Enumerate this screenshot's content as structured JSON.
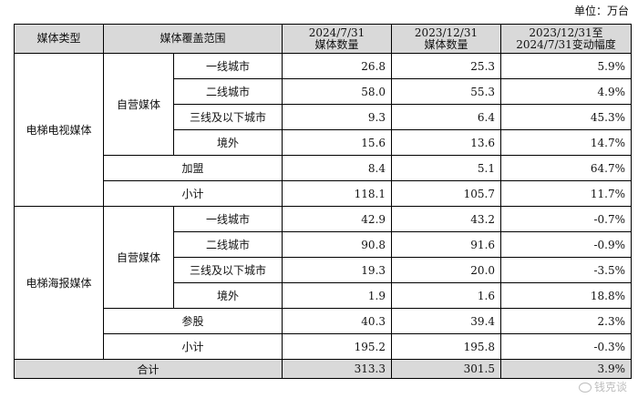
{
  "unit_label": "单位：万台",
  "headers": {
    "media_type": "媒体类型",
    "coverage": "媒体覆盖范围",
    "col_2024_date": "2024/7/31",
    "col_2024_sub": "媒体数量",
    "col_2023_date": "2023/12/31",
    "col_2023_sub": "媒体数量",
    "col_change_date": "2023/12/31至",
    "col_change_sub": "2024/7/31变动幅度"
  },
  "sections": [
    {
      "type": "电梯电视媒体",
      "self_label": "自营媒体",
      "self_rows": [
        {
          "label": "一线城市",
          "v2024": "26.8",
          "v2023": "25.3",
          "change": "5.9%"
        },
        {
          "label": "二线城市",
          "v2024": "58.0",
          "v2023": "55.3",
          "change": "4.9%"
        },
        {
          "label": "三线及以下城市",
          "v2024": "9.3",
          "v2023": "6.4",
          "change": "45.3%"
        },
        {
          "label": "境外",
          "v2024": "15.6",
          "v2023": "13.6",
          "change": "14.7%"
        }
      ],
      "extra_row": {
        "label": "加盟",
        "v2024": "8.4",
        "v2023": "5.1",
        "change": "64.7%"
      },
      "subtotal": {
        "label": "小计",
        "v2024": "118.1",
        "v2023": "105.7",
        "change": "11.7%"
      }
    },
    {
      "type": "电梯海报媒体",
      "self_label": "自营媒体",
      "self_rows": [
        {
          "label": "一线城市",
          "v2024": "42.9",
          "v2023": "43.2",
          "change": "-0.7%"
        },
        {
          "label": "二线城市",
          "v2024": "90.8",
          "v2023": "91.6",
          "change": "-0.9%"
        },
        {
          "label": "三线及以下城市",
          "v2024": "19.3",
          "v2023": "20.0",
          "change": "-3.5%"
        },
        {
          "label": "境外",
          "v2024": "1.9",
          "v2023": "1.6",
          "change": "18.8%"
        }
      ],
      "extra_row": {
        "label": "参股",
        "v2024": "40.3",
        "v2023": "39.4",
        "change": "2.3%"
      },
      "subtotal": {
        "label": "小计",
        "v2024": "195.2",
        "v2023": "195.8",
        "change": "-0.3%"
      }
    }
  ],
  "total": {
    "label": "合计",
    "v2024": "313.3",
    "v2023": "301.5",
    "change": "3.9%"
  },
  "watermark": "钱克谈"
}
